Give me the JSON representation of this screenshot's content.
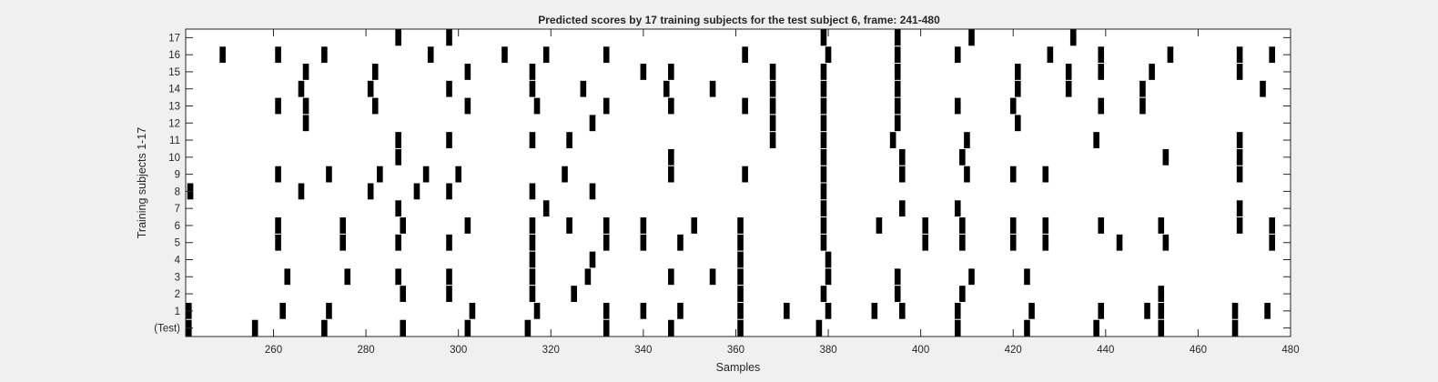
{
  "chart_data": {
    "type": "heatmap",
    "title": "Predicted scores by 17 training subjects for the test subject 6, frame: 241-480",
    "xlabel": "Samples",
    "ylabel": "Training subjects 1-17",
    "xlim": [
      241,
      480
    ],
    "x_ticks": [
      260,
      280,
      300,
      320,
      340,
      360,
      380,
      400,
      420,
      440,
      460,
      480
    ],
    "y_tick_labels": [
      "(Test)",
      "1",
      "2",
      "3",
      "4",
      "5",
      "6",
      "7",
      "8",
      "9",
      "10",
      "11",
      "12",
      "13",
      "14",
      "15",
      "16",
      "17"
    ],
    "grid": false,
    "legend": "none",
    "colors": {
      "mark": "#000000",
      "background": "#ffffff",
      "figure": "#f0f0f0"
    },
    "rows": [
      {
        "label": "(Test)",
        "samples": [
          241,
          256,
          271,
          288,
          302,
          315,
          332,
          346,
          361,
          378,
          408,
          423,
          438,
          452,
          468
        ]
      },
      {
        "label": "1",
        "samples": [
          241,
          262,
          272,
          303,
          317,
          332,
          340,
          348,
          361,
          371,
          380,
          390,
          396,
          408,
          424,
          439,
          449,
          452,
          468,
          475
        ]
      },
      {
        "label": "2",
        "samples": [
          288,
          298,
          316,
          325,
          361,
          379,
          395,
          409,
          452
        ]
      },
      {
        "label": "3",
        "samples": [
          263,
          276,
          287,
          298,
          316,
          328,
          346,
          355,
          361,
          380,
          395,
          411,
          423
        ]
      },
      {
        "label": "4",
        "samples": [
          316,
          329,
          361,
          380
        ]
      },
      {
        "label": "5",
        "samples": [
          261,
          275,
          287,
          298,
          316,
          332,
          340,
          348,
          361,
          379,
          401,
          409,
          420,
          427,
          443,
          453,
          476
        ]
      },
      {
        "label": "6",
        "samples": [
          261,
          275,
          288,
          302,
          316,
          324,
          332,
          340,
          351,
          361,
          379,
          391,
          401,
          409,
          420,
          427,
          439,
          452,
          469,
          476
        ]
      },
      {
        "label": "7",
        "samples": [
          287,
          319,
          379,
          396,
          408,
          469
        ]
      },
      {
        "label": "8",
        "samples": [
          242,
          266,
          281,
          291,
          298,
          316,
          329,
          379
        ]
      },
      {
        "label": "9",
        "samples": [
          261,
          272,
          283,
          293,
          300,
          323,
          346,
          362,
          379,
          396,
          410,
          420,
          427,
          469
        ]
      },
      {
        "label": "10",
        "samples": [
          287,
          346,
          379,
          396,
          409,
          453,
          469
        ]
      },
      {
        "label": "11",
        "samples": [
          287,
          298,
          316,
          324,
          368,
          379,
          394,
          410,
          438,
          469
        ]
      },
      {
        "label": "12",
        "samples": [
          267,
          329,
          368,
          379,
          395,
          421
        ]
      },
      {
        "label": "13",
        "samples": [
          261,
          267,
          282,
          302,
          317,
          332,
          346,
          362,
          368,
          379,
          395,
          408,
          420,
          439,
          448
        ]
      },
      {
        "label": "14",
        "samples": [
          266,
          281,
          298,
          316,
          327,
          345,
          355,
          368,
          379,
          395,
          421,
          432,
          448,
          474
        ]
      },
      {
        "label": "15",
        "samples": [
          267,
          282,
          302,
          316,
          340,
          346,
          368,
          379,
          395,
          421,
          432,
          439,
          450,
          469
        ]
      },
      {
        "label": "16",
        "samples": [
          249,
          261,
          271,
          294,
          310,
          319,
          332,
          362,
          380,
          395,
          408,
          428,
          439,
          454,
          469,
          476
        ]
      },
      {
        "label": "17",
        "samples": [
          287,
          298,
          379,
          395,
          411,
          433
        ]
      }
    ]
  }
}
